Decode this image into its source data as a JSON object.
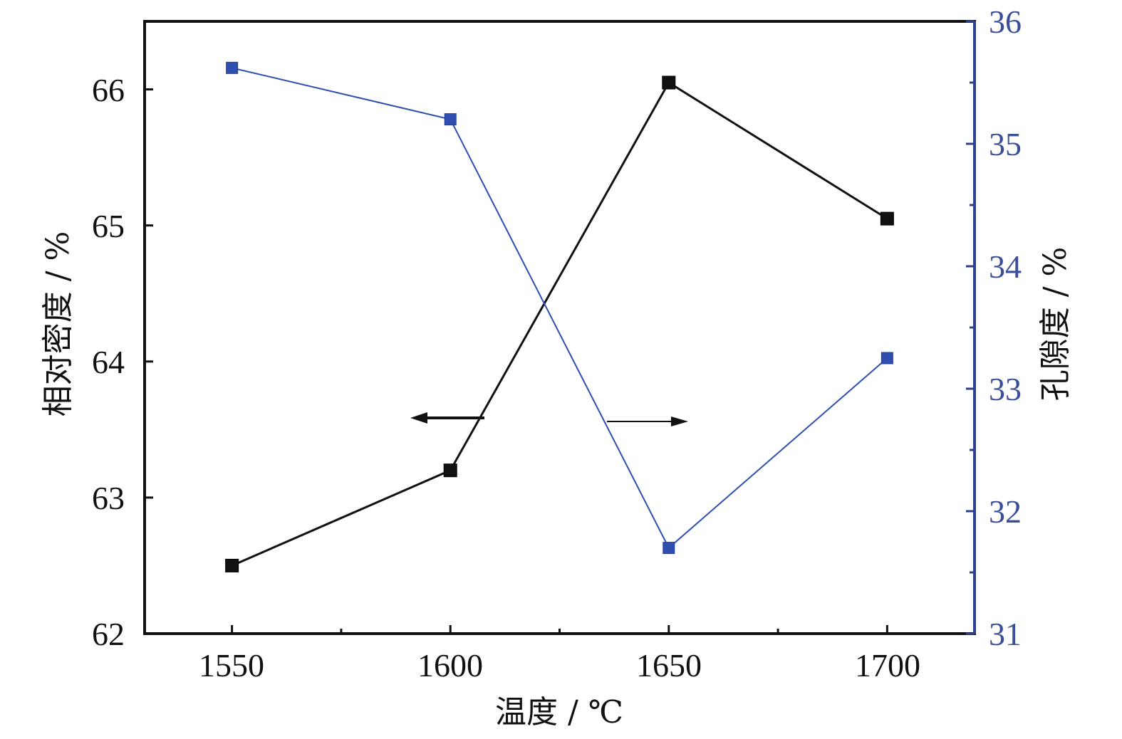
{
  "chart_data": {
    "type": "line",
    "x": [
      1550,
      1600,
      1650,
      1700
    ],
    "xlabel": "温度 / ℃",
    "xlim": [
      1530,
      1720
    ],
    "xticks": [
      "1550",
      "1600",
      "1650",
      "1700"
    ],
    "y_left": {
      "label": "相对密度 / %",
      "lim": [
        62,
        66.5
      ],
      "ticks": [
        "62",
        "63",
        "64",
        "65",
        "66"
      ],
      "color": "#111111"
    },
    "y_right": {
      "label": "孔隙度 / %",
      "lim": [
        31,
        36
      ],
      "ticks": [
        "31",
        "32",
        "33",
        "34",
        "35",
        "36"
      ],
      "color": "#2f3f8f"
    },
    "series": [
      {
        "axis": "left",
        "values": [
          62.5,
          63.2,
          66.05,
          65.05
        ],
        "color": "#111111",
        "marker": "square"
      },
      {
        "axis": "right",
        "values": [
          35.62,
          35.2,
          31.7,
          33.25
        ],
        "color": "#2e4fb0",
        "marker": "square"
      }
    ],
    "grid": false
  }
}
